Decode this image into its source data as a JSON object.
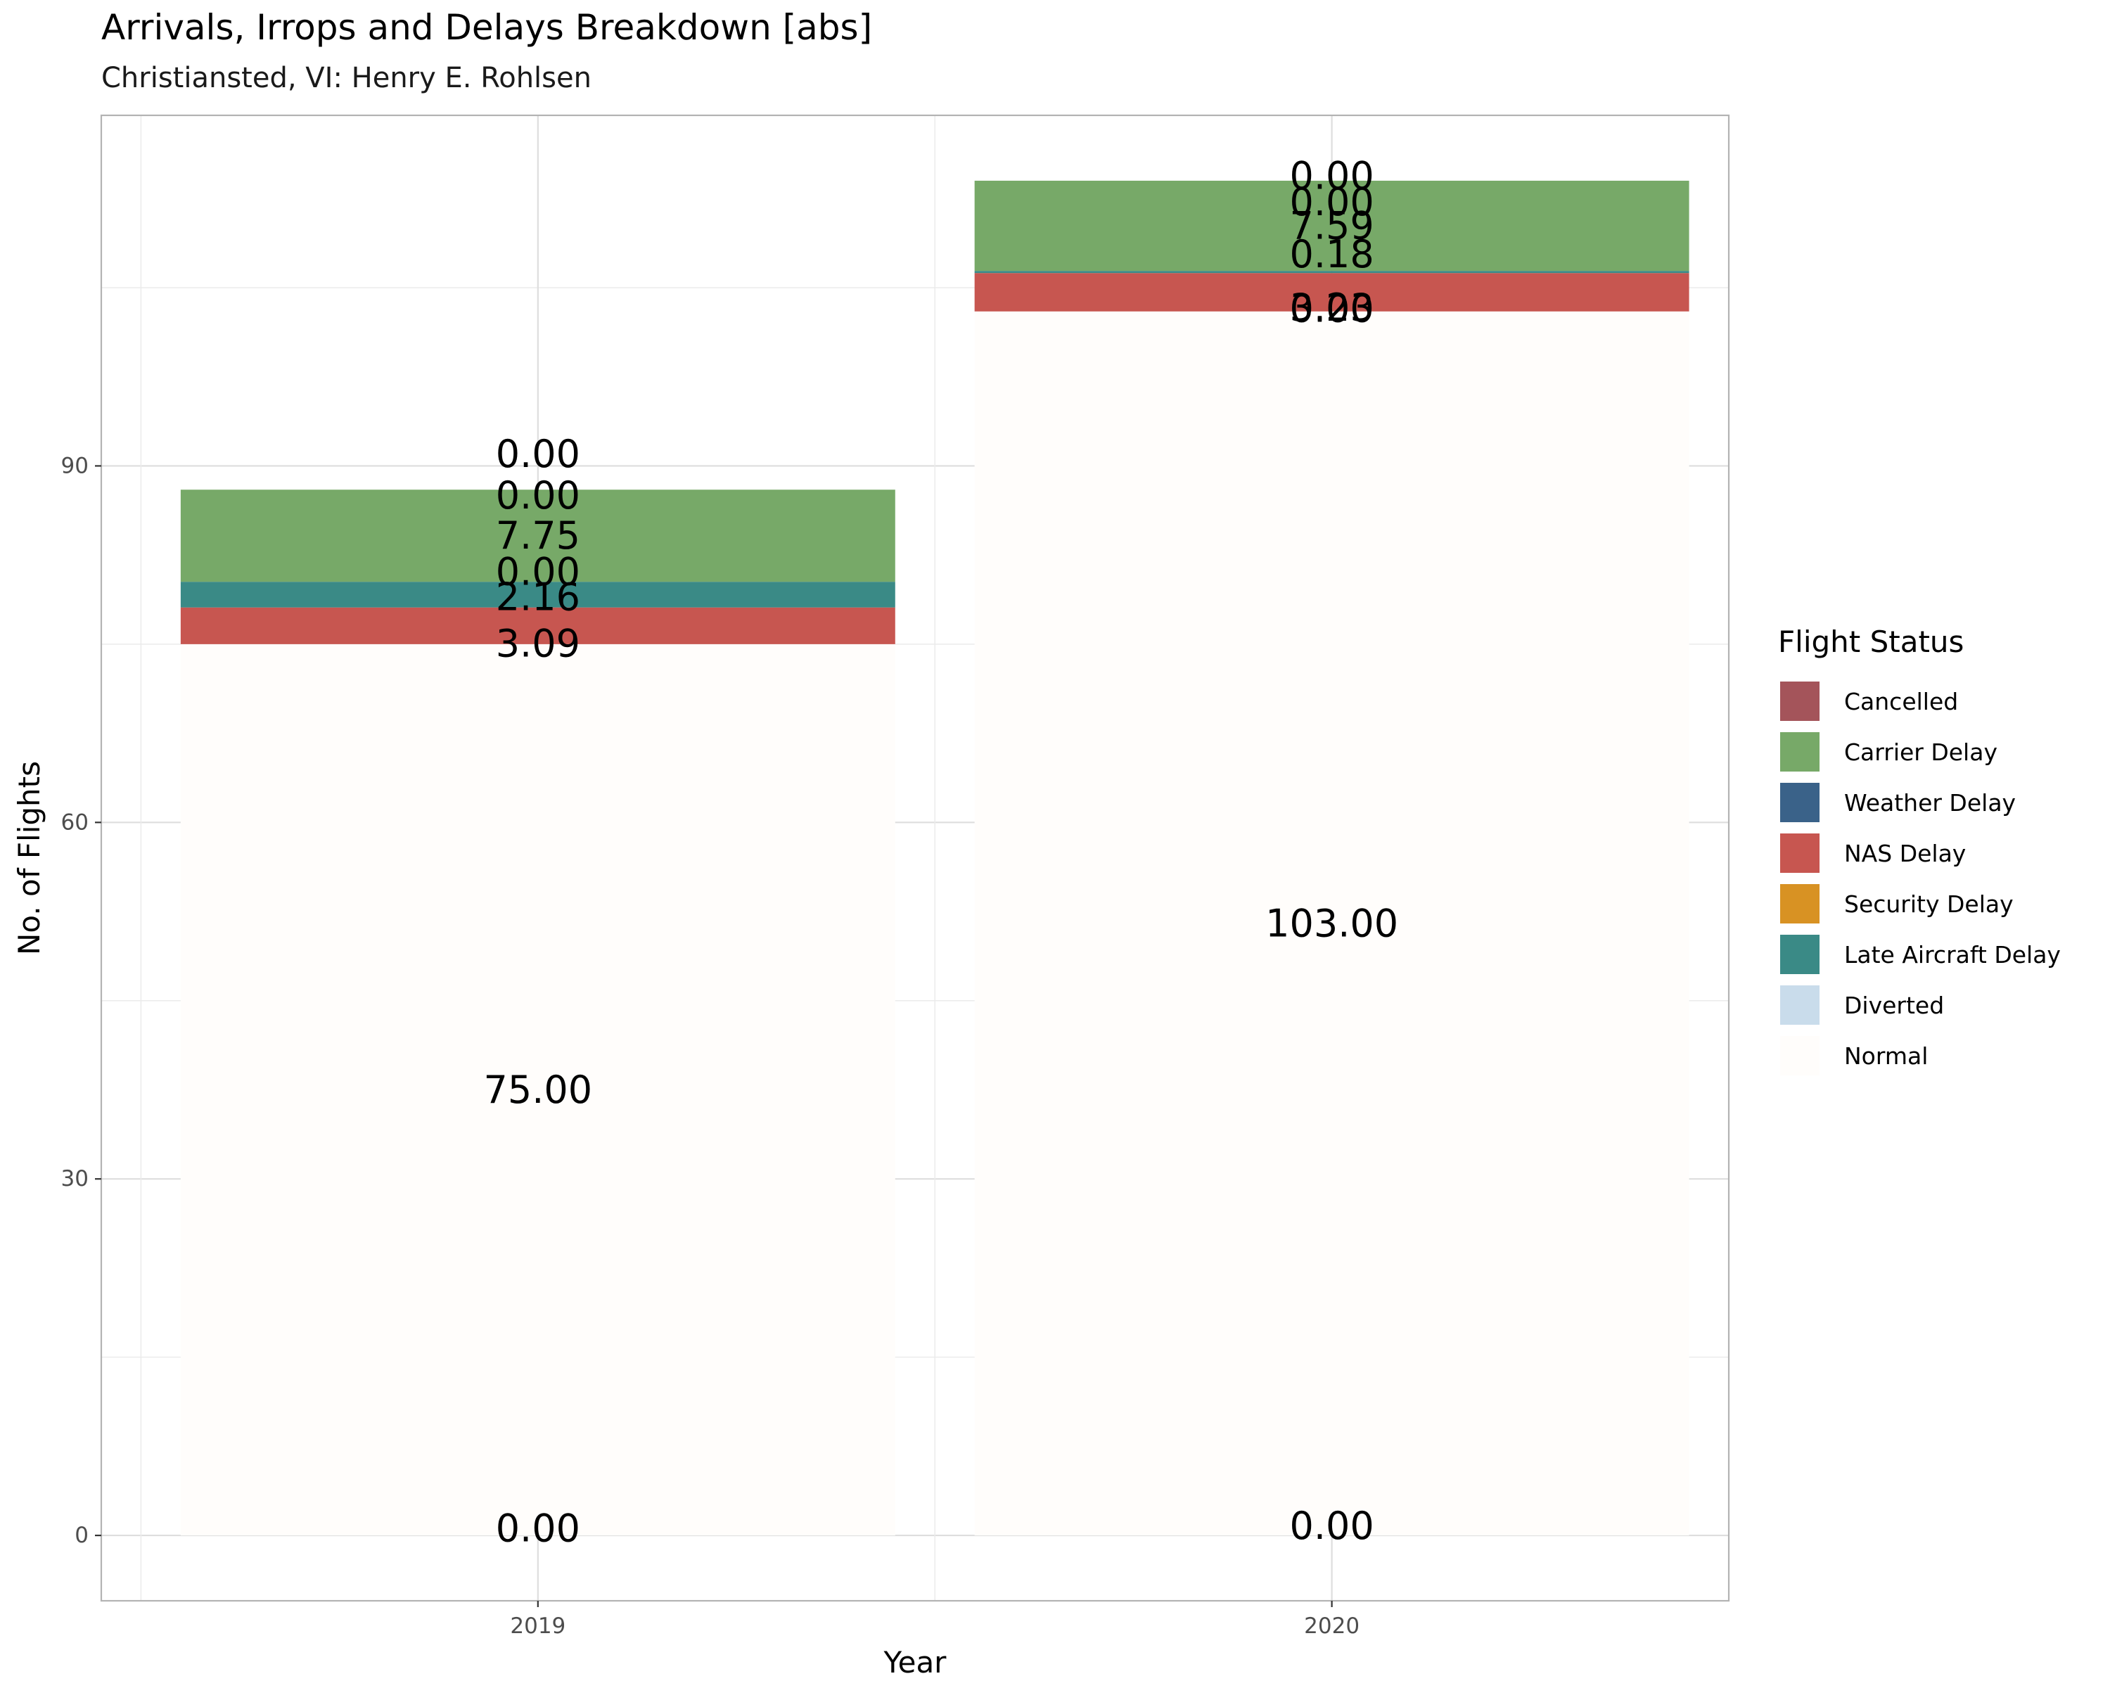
{
  "chart_data": {
    "type": "bar",
    "stacked": true,
    "title": "Arrivals, Irrops and Delays Breakdown [abs]",
    "subtitle": "Christiansted, VI: Henry E. Rohlsen",
    "xlabel": "Year",
    "ylabel": "No. of Flights",
    "categories": [
      "2019",
      "2020"
    ],
    "yticks": [
      "0",
      "30",
      "60",
      "90"
    ],
    "ylim": [
      -5.5,
      119.5
    ],
    "grid": true,
    "legend_title": "Flight Status",
    "legend_position": "right",
    "series": [
      {
        "name": "Cancelled",
        "color": "#A4545A",
        "values": [
          0.0,
          0.0
        ],
        "labels": [
          "0.00",
          "0.00"
        ]
      },
      {
        "name": "Carrier Delay",
        "color": "#77A968",
        "values": [
          7.75,
          7.59
        ],
        "labels": [
          "7.75",
          "7.59"
        ]
      },
      {
        "name": "Weather Delay",
        "color": "#3A6289",
        "values": [
          0.0,
          0.0
        ],
        "labels": [
          "0.00",
          "0.00"
        ]
      },
      {
        "name": "NAS Delay",
        "color": "#C75650",
        "values": [
          3.09,
          3.23
        ],
        "labels": [
          "3.09",
          "3.23"
        ]
      },
      {
        "name": "Security Delay",
        "color": "#D89223",
        "values": [
          0.0,
          0.0
        ],
        "labels": [
          "0.00",
          "0.00"
        ]
      },
      {
        "name": "Late Aircraft Delay",
        "color": "#3A8A86",
        "values": [
          2.16,
          0.18
        ],
        "labels": [
          "2.16",
          "0.18"
        ]
      },
      {
        "name": "Diverted",
        "color": "#C9DCEB",
        "values": [
          0.0,
          0.0
        ],
        "labels": [
          "0.00",
          "0.00"
        ]
      },
      {
        "name": "Normal",
        "color": "#FFFDFB",
        "values": [
          75.0,
          103.0
        ],
        "labels": [
          "75.00",
          "103.00"
        ]
      }
    ],
    "stack_order_bottom_to_top": [
      "Diverted",
      "Normal",
      "NAS Delay",
      "Security Delay",
      "Late Aircraft Delay",
      "Carrier Delay",
      "Weather Delay",
      "Cancelled"
    ]
  }
}
